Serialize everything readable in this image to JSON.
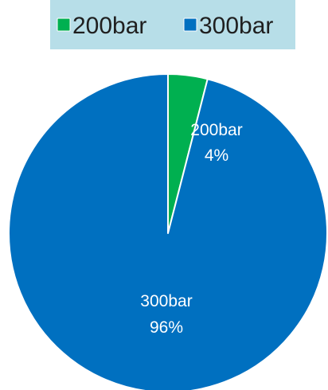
{
  "chart_data": {
    "type": "pie",
    "categories": [
      "200bar",
      "300bar"
    ],
    "values": [
      4,
      96
    ],
    "percent_labels": [
      "4%",
      "96%"
    ],
    "colors": [
      "#00b050",
      "#0070c0"
    ],
    "legend_position": "top",
    "legend_background": "#b7dee8",
    "slice_border_color": "#ffffff",
    "start_angle_degrees": 0,
    "direction": "clockwise"
  }
}
